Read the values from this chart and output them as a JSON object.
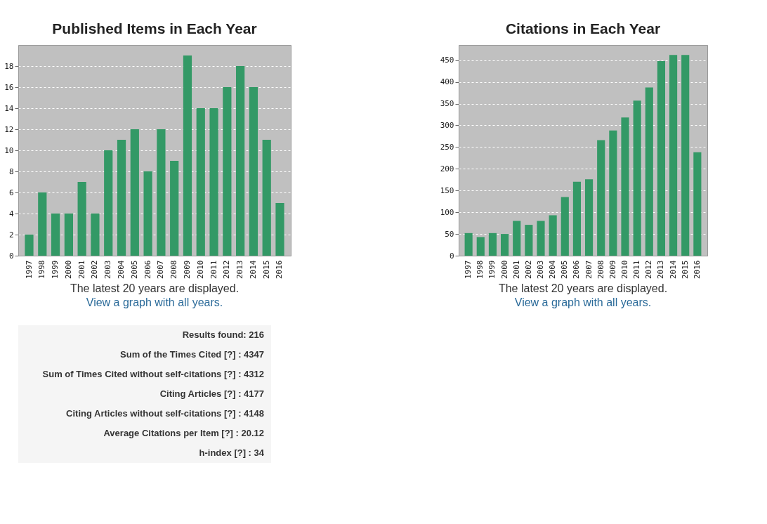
{
  "chart_data": [
    {
      "type": "bar",
      "title": "Published Items in Each Year",
      "categories": [
        "1997",
        "1998",
        "1999",
        "2000",
        "2001",
        "2002",
        "2003",
        "2004",
        "2005",
        "2006",
        "2007",
        "2008",
        "2009",
        "2010",
        "2011",
        "2012",
        "2013",
        "2014",
        "2015",
        "2016"
      ],
      "values": [
        2,
        6,
        4,
        4,
        7,
        4,
        10,
        11,
        12,
        8,
        12,
        9,
        19,
        14,
        14,
        16,
        18,
        16,
        11,
        5
      ],
      "color": "#339966",
      "ylim": [
        0,
        20
      ],
      "yticks": [
        0,
        2,
        4,
        6,
        8,
        10,
        12,
        14,
        16,
        18
      ],
      "grid": "y",
      "annotations": [
        "The latest 20 years are displayed.",
        "View a graph with all years."
      ]
    },
    {
      "type": "bar",
      "title": "Citations in Each Year",
      "categories": [
        "1997",
        "1998",
        "1999",
        "2000",
        "2001",
        "2002",
        "2003",
        "2004",
        "2005",
        "2006",
        "2007",
        "2008",
        "2009",
        "2010",
        "2011",
        "2012",
        "2013",
        "2014",
        "2015",
        "2016"
      ],
      "values": [
        52,
        43,
        52,
        50,
        80,
        71,
        80,
        93,
        135,
        170,
        176,
        266,
        288,
        318,
        357,
        387,
        448,
        462,
        462,
        238
      ],
      "color": "#339966",
      "ylim": [
        0,
        485
      ],
      "yticks": [
        0,
        50,
        100,
        150,
        200,
        250,
        300,
        350,
        400,
        450
      ],
      "grid": "y",
      "annotations": [
        "The latest 20 years are displayed.",
        "View a graph with all years."
      ]
    },
    {
      "type": "other",
      "annotations": [
        "Results found: 216",
        "Sum of the Times Cited [?] : 4347",
        "Sum of Times Cited without self-citations [?] : 4312",
        "Citing Articles [?] : 4177",
        "Citing Articles without self-citations [?] : 4148",
        "Average Citations per Item [?] : 20.12",
        "h-index [?] : 34"
      ]
    }
  ]
}
